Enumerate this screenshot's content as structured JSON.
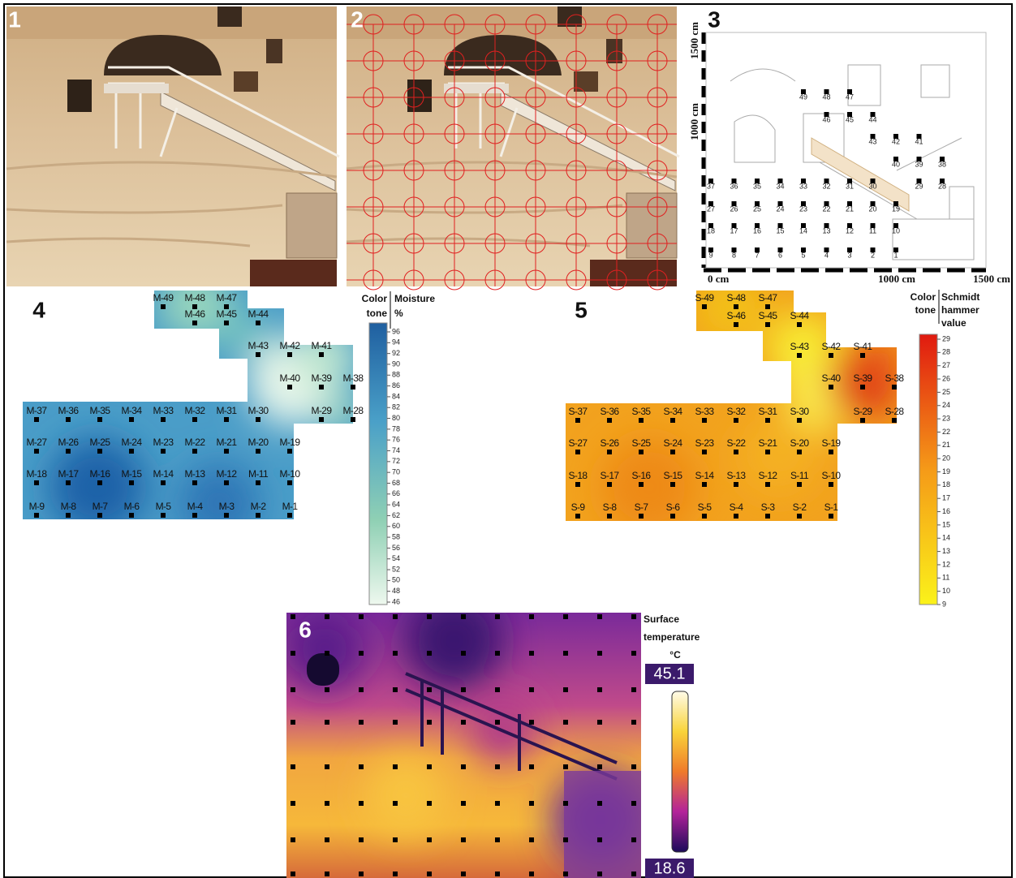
{
  "panel_labels": [
    "1",
    "2",
    "3",
    "4",
    "5",
    "6"
  ],
  "survey_grid": {
    "axis_labels": {
      "left_top": "1500 cm",
      "left_mid": "1000 cm",
      "bottom_start": "0 cm",
      "bottom_mid": "1000 cm",
      "bottom_end": "1500 cm"
    },
    "rows": [
      [
        "49",
        "48",
        "47"
      ],
      [
        "46",
        "45",
        "44"
      ],
      [
        "43",
        "42",
        "41"
      ],
      [
        "40",
        "39",
        "38"
      ],
      [
        "37",
        "36",
        "35",
        "34",
        "33",
        "32",
        "31",
        "30",
        "29",
        "28"
      ],
      [
        "27",
        "26",
        "25",
        "24",
        "23",
        "22",
        "21",
        "20",
        "19"
      ],
      [
        "18",
        "17",
        "16",
        "15",
        "14",
        "13",
        "12",
        "11",
        "10"
      ],
      [
        "9",
        "8",
        "7",
        "6",
        "5",
        "4",
        "3",
        "2",
        "1"
      ]
    ]
  },
  "moisture": {
    "legend_tone": [
      "Color",
      "tone"
    ],
    "legend_title": [
      "Moisture",
      "%"
    ],
    "scale": [
      96,
      94,
      92,
      90,
      88,
      86,
      84,
      82,
      80,
      78,
      76,
      74,
      72,
      70,
      68,
      66,
      64,
      62,
      60,
      58,
      56,
      54,
      52,
      50,
      48,
      46
    ],
    "rows": [
      [
        "M-49",
        "M-48",
        "M-47"
      ],
      [
        "M-46",
        "M-45",
        "M-44"
      ],
      [
        "M-43",
        "M-42",
        "M-41"
      ],
      [
        "M-40",
        "M-39",
        "M-38"
      ],
      [
        "M-37",
        "M-36",
        "M-35",
        "M-34",
        "M-33",
        "M-32",
        "M-31",
        "M-30",
        "M-29",
        "M-28"
      ],
      [
        "M-27",
        "M-26",
        "M-25",
        "M-24",
        "M-23",
        "M-22",
        "M-21",
        "M-20",
        "M-19"
      ],
      [
        "M-18",
        "M-17",
        "M-16",
        "M-15",
        "M-14",
        "M-13",
        "M-12",
        "M-11",
        "M-10"
      ],
      [
        "M-9",
        "M-8",
        "M-7",
        "M-6",
        "M-5",
        "M-4",
        "M-3",
        "M-2",
        "M-1"
      ]
    ]
  },
  "schmidt": {
    "legend_tone": [
      "Color",
      "tone"
    ],
    "legend_title": [
      "Schmidt",
      "hammer",
      "value"
    ],
    "scale": [
      29,
      28,
      27,
      26,
      25,
      24,
      23,
      22,
      21,
      20,
      19,
      18,
      17,
      16,
      15,
      14,
      13,
      12,
      11,
      10,
      9
    ],
    "rows": [
      [
        "S-49",
        "S-48",
        "S-47"
      ],
      [
        "S-46",
        "S-45",
        "S-44"
      ],
      [
        "S-43",
        "S-42",
        "S-41"
      ],
      [
        "S-40",
        "S-39",
        "S-38"
      ],
      [
        "S-37",
        "S-36",
        "S-35",
        "S-34",
        "S-33",
        "S-32",
        "S-31",
        "S-30",
        "S-29",
        "S-28"
      ],
      [
        "S-27",
        "S-26",
        "S-25",
        "S-24",
        "S-23",
        "S-22",
        "S-21",
        "S-20",
        "S-19"
      ],
      [
        "S-18",
        "S-17",
        "S-16",
        "S-15",
        "S-14",
        "S-13",
        "S-12",
        "S-11",
        "S-10"
      ],
      [
        "S-9",
        "S-8",
        "S-7",
        "S-6",
        "S-5",
        "S-4",
        "S-3",
        "S-2",
        "S-1"
      ]
    ]
  },
  "thermal": {
    "legend_title": [
      "Surface",
      "temperature",
      "°C"
    ],
    "max": 45.1,
    "min": 18.6
  }
}
